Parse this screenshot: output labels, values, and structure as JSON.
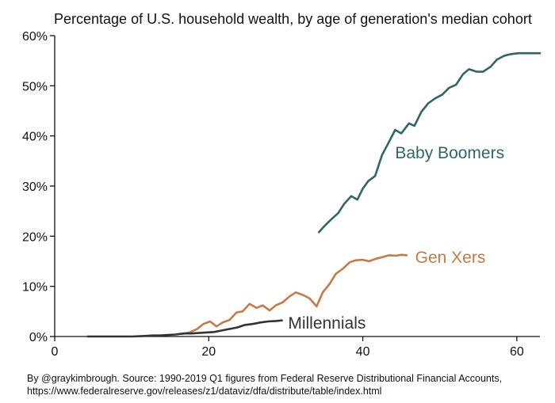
{
  "chart_data": {
    "type": "line",
    "title": "Percentage of U.S. household wealth, by age of generation's median cohort",
    "xlabel": "",
    "ylabel": "",
    "xlim": [
      0,
      63
    ],
    "ylim": [
      0,
      60
    ],
    "x_ticks": [
      0,
      20,
      40,
      60
    ],
    "y_ticks": [
      0,
      10,
      20,
      30,
      40,
      50,
      60
    ],
    "y_tick_format": "percent",
    "grid": false,
    "legend": "direct labels",
    "series": [
      {
        "name": "Baby Boomers",
        "color": "#2f6666",
        "label_at": [
          44.2,
          36.6
        ],
        "x": [
          34.3,
          35.0,
          36.0,
          36.8,
          37.6,
          38.5,
          39.3,
          40.0,
          40.7,
          41.6,
          42.5,
          43.3,
          44.2,
          45.0,
          46.0,
          46.7,
          47.6,
          48.5,
          49.4,
          50.3,
          51.2,
          52.1,
          53.0,
          53.8,
          54.8,
          55.6,
          56.6,
          57.4,
          58.4,
          59.2,
          60.2,
          61.0,
          62.0,
          63.0
        ],
        "y": [
          20.8,
          22.0,
          23.5,
          24.6,
          26.5,
          28.0,
          27.3,
          29.5,
          31.0,
          32.0,
          36.2,
          38.5,
          41.2,
          40.5,
          42.5,
          42.0,
          44.8,
          46.5,
          47.5,
          48.2,
          49.6,
          50.2,
          52.3,
          53.3,
          52.8,
          52.8,
          53.8,
          55.2,
          56.0,
          56.3,
          56.5,
          56.5,
          56.5,
          56.5
        ]
      },
      {
        "name": "Gen Xers",
        "color": "#c77a45",
        "label_at": [
          46.8,
          15.8
        ],
        "x": [
          16.5,
          17.5,
          18.5,
          19.3,
          20.2,
          21.0,
          21.8,
          22.7,
          23.6,
          24.4,
          25.3,
          26.2,
          27.0,
          27.9,
          28.7,
          29.6,
          30.5,
          31.3,
          32.2,
          33.1,
          34.0,
          34.8,
          35.7,
          36.5,
          37.4,
          38.3,
          39.1,
          40.0,
          40.8,
          41.7,
          42.5,
          43.4,
          44.3,
          45.0,
          45.7
        ],
        "y": [
          0.5,
          0.8,
          1.5,
          2.5,
          3.0,
          2.0,
          2.8,
          3.3,
          4.8,
          5.0,
          6.5,
          5.7,
          6.2,
          5.2,
          6.2,
          6.8,
          8.0,
          8.8,
          8.3,
          7.6,
          6.0,
          8.8,
          10.5,
          12.5,
          13.5,
          14.8,
          15.2,
          15.3,
          15.0,
          15.5,
          15.8,
          16.2,
          16.1,
          16.3,
          16.2
        ]
      },
      {
        "name": "Millennials",
        "color": "#333333",
        "label_at": [
          30.3,
          2.7
        ],
        "x": [
          4.3,
          6.0,
          8.0,
          10.0,
          11.5,
          12.7,
          13.7,
          14.7,
          15.7,
          16.7,
          17.7,
          18.7,
          19.7,
          20.7,
          21.7,
          22.7,
          23.7,
          24.7,
          25.7,
          26.7,
          27.7,
          28.7,
          29.5
        ],
        "y": [
          0.0,
          0.0,
          0.0,
          0.0,
          0.1,
          0.2,
          0.2,
          0.3,
          0.4,
          0.6,
          0.6,
          0.7,
          0.8,
          0.9,
          1.2,
          1.5,
          1.8,
          2.3,
          2.5,
          2.8,
          3.0,
          3.1,
          3.2
        ]
      }
    ]
  },
  "footer": {
    "line1": "By @graykimbrough. Source: 1990-2019 Q1 figures from Federal Reserve Distributional Financial Accounts,",
    "line2": "https://www.federalreserve.gov/releases/z1/dataviz/dfa/distribute/table/index.html"
  }
}
